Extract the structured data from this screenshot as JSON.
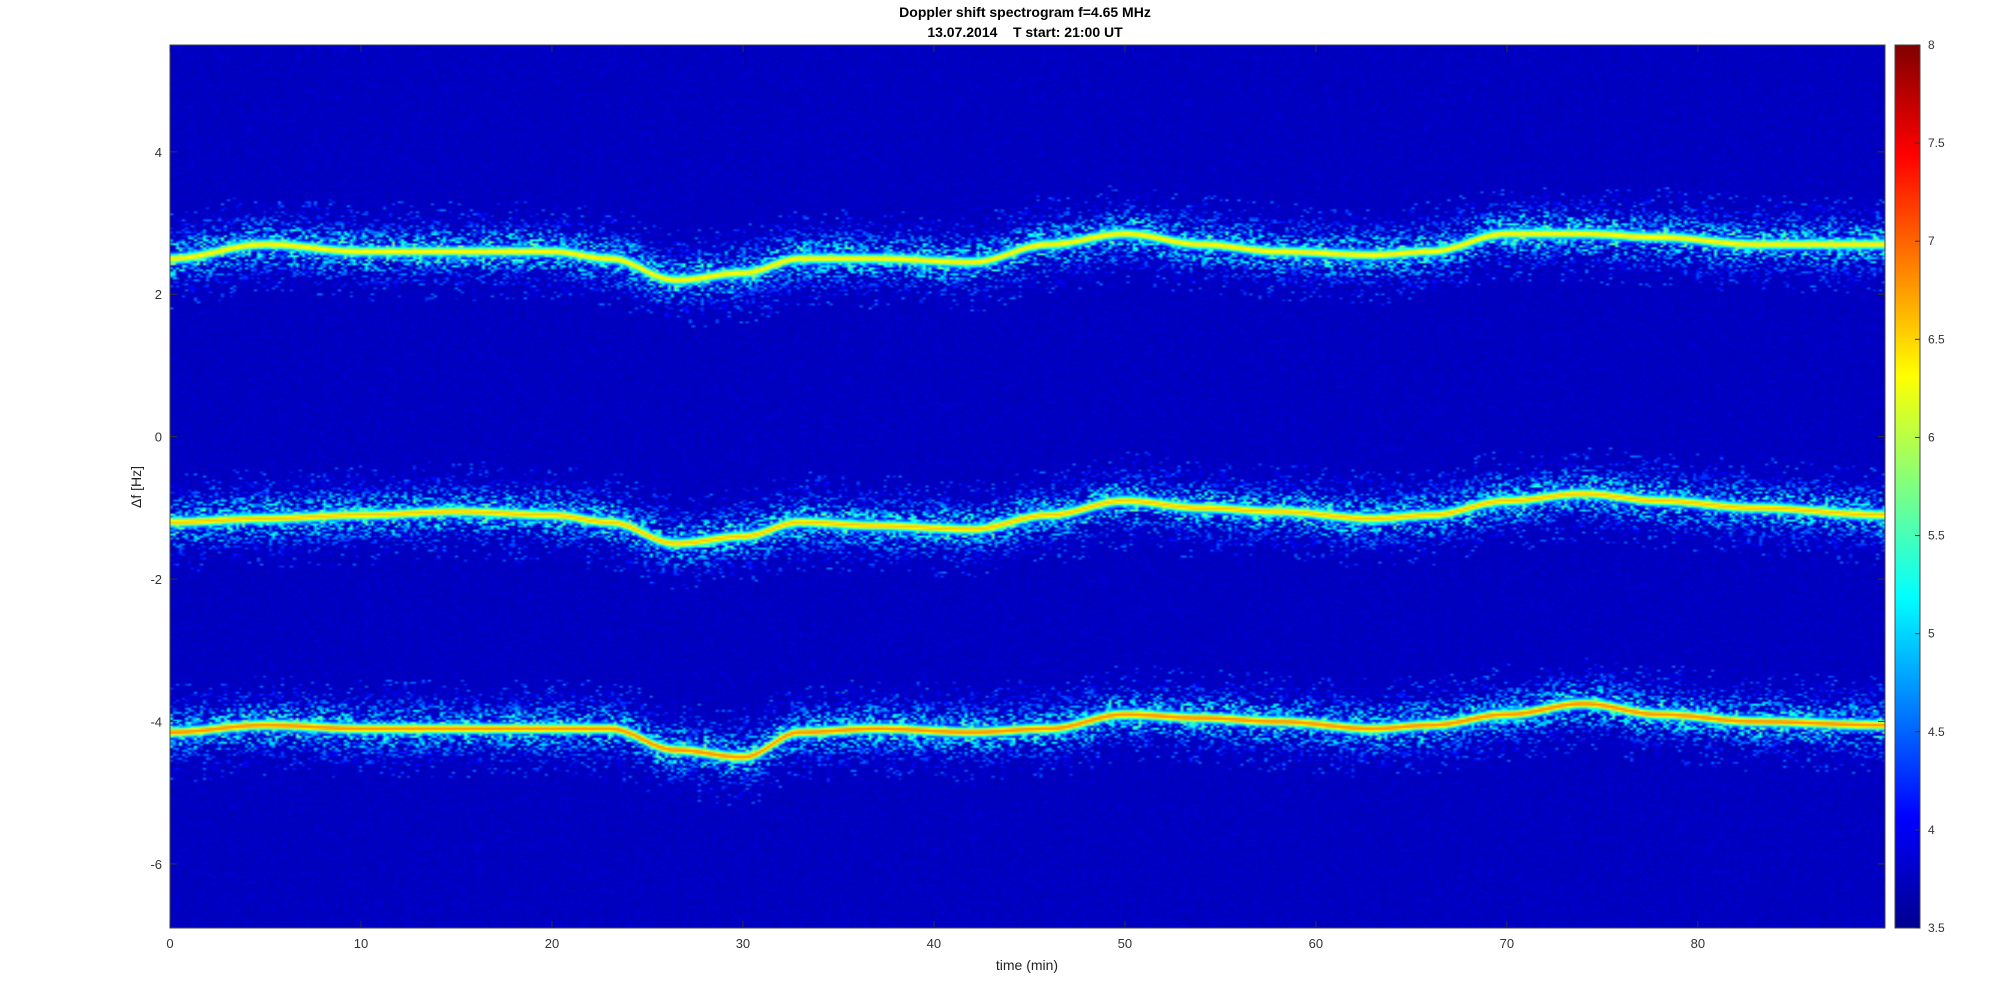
{
  "chart_data": {
    "type": "heatmap",
    "title": "Doppler shift spectrogram f=4.65 MHz",
    "subtitle": "13.07.2014    T start: 21:00 UT",
    "xlabel": "time (min)",
    "ylabel": "Δf [Hz]",
    "xlim": [
      0,
      89.8
    ],
    "ylim": [
      -6.9,
      5.5
    ],
    "xticks": [
      "0",
      "10",
      "20",
      "30",
      "40",
      "50",
      "60",
      "70",
      "80"
    ],
    "yticks": [
      "-6",
      "-4",
      "-2",
      "0",
      "2",
      "4"
    ],
    "colorbar": {
      "colormap": "jet",
      "range": [
        3.5,
        8
      ],
      "ticks": [
        "3.5",
        "4",
        "4.5",
        "5",
        "5.5",
        "6",
        "6.5",
        "7",
        "7.5",
        "8"
      ]
    },
    "background_level": 3.8,
    "grid": false,
    "series": [
      {
        "x": [
          0,
          5,
          10,
          15,
          20,
          23,
          26.5,
          30,
          33,
          37,
          42,
          46,
          50,
          54,
          58,
          63,
          66,
          70,
          74,
          78,
          83,
          89.8
        ],
        "y": [
          2.5,
          2.7,
          2.6,
          2.6,
          2.6,
          2.5,
          2.2,
          2.3,
          2.5,
          2.5,
          2.45,
          2.7,
          2.85,
          2.7,
          2.6,
          2.55,
          2.6,
          2.85,
          2.85,
          2.8,
          2.7,
          2.7
        ],
        "peak_level": 6.8
      },
      {
        "x": [
          0,
          5,
          10,
          15,
          20,
          23,
          26.5,
          30,
          33,
          37,
          42,
          46,
          50,
          54,
          58,
          63,
          66,
          70,
          74,
          78,
          83,
          89.8
        ],
        "y": [
          -1.2,
          -1.15,
          -1.1,
          -1.05,
          -1.1,
          -1.2,
          -1.5,
          -1.4,
          -1.2,
          -1.25,
          -1.3,
          -1.1,
          -0.9,
          -1.0,
          -1.05,
          -1.15,
          -1.1,
          -0.9,
          -0.8,
          -0.9,
          -1.0,
          -1.1
        ],
        "peak_level": 7.0
      },
      {
        "x": [
          0,
          5,
          10,
          15,
          20,
          23,
          26.5,
          30,
          33,
          37,
          42,
          46,
          50,
          54,
          58,
          63,
          66,
          70,
          74,
          78,
          83,
          89.8
        ],
        "y": [
          -4.15,
          -4.05,
          -4.1,
          -4.1,
          -4.1,
          -4.1,
          -4.4,
          -4.5,
          -4.15,
          -4.1,
          -4.15,
          -4.1,
          -3.9,
          -3.95,
          -4.0,
          -4.1,
          -4.05,
          -3.9,
          -3.75,
          -3.9,
          -4.0,
          -4.05
        ],
        "peak_level": 7.3
      }
    ]
  }
}
